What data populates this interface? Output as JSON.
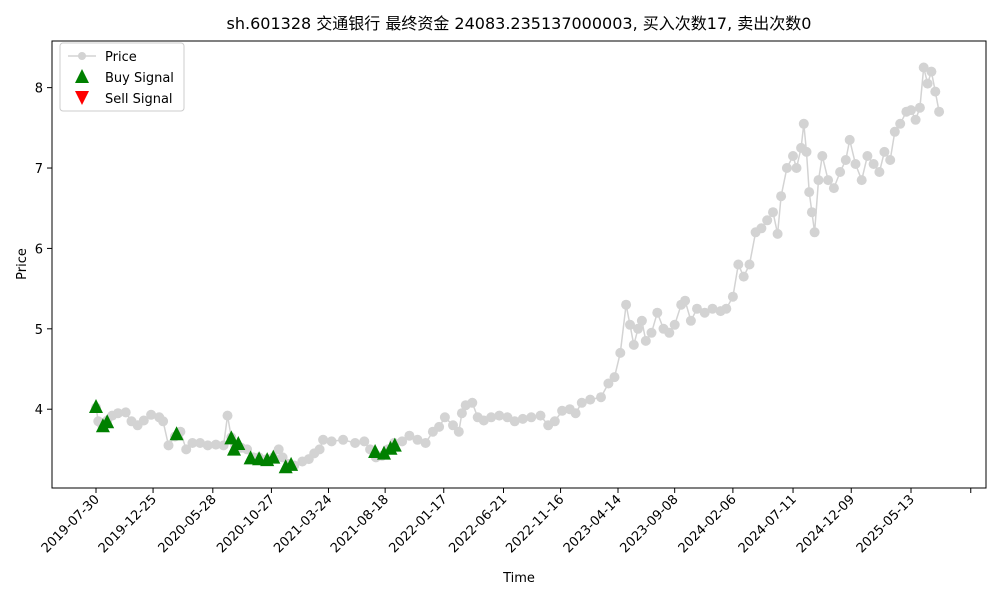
{
  "chart_data": {
    "type": "line",
    "title": "sh.601328 交通银行 最终资金 24083.235137000003, 买入次数17, 卖出次数0",
    "xlabel": "Time",
    "ylabel": "Price",
    "ylim": [
      3.02,
      8.58
    ],
    "yticks": [
      4,
      5,
      6,
      7,
      8
    ],
    "x_start": "2019-07-30",
    "x_end": "2025-07-31",
    "xticks": [
      "2019-07-30",
      "2019-12-25",
      "2020-05-28",
      "2020-10-27",
      "2021-03-24",
      "2021-08-18",
      "2022-01-17",
      "2022-06-21",
      "2022-11-16",
      "2023-04-14",
      "2023-09-08",
      "2024-02-06",
      "2024-07-11",
      "2024-12-09",
      "2025-05-13"
    ],
    "grid": false,
    "legend_location": "upper left",
    "colors": {
      "price": "#d3d3d3",
      "buy": "#008000",
      "sell": "#ff0000"
    },
    "series": [
      {
        "name": "Price",
        "marker": "circle",
        "points": [
          [
            "2019-07-30",
            4.02
          ],
          [
            "2019-08-05",
            3.85
          ],
          [
            "2019-08-15",
            3.8
          ],
          [
            "2019-08-28",
            3.86
          ],
          [
            "2019-09-10",
            3.92
          ],
          [
            "2019-09-25",
            3.95
          ],
          [
            "2019-10-15",
            3.96
          ],
          [
            "2019-10-30",
            3.85
          ],
          [
            "2019-11-15",
            3.8
          ],
          [
            "2019-12-01",
            3.86
          ],
          [
            "2019-12-20",
            3.93
          ],
          [
            "2020-01-10",
            3.9
          ],
          [
            "2020-01-20",
            3.85
          ],
          [
            "2020-02-03",
            3.55
          ],
          [
            "2020-02-20",
            3.66
          ],
          [
            "2020-03-05",
            3.72
          ],
          [
            "2020-03-20",
            3.5
          ],
          [
            "2020-04-05",
            3.58
          ],
          [
            "2020-04-25",
            3.58
          ],
          [
            "2020-05-15",
            3.55
          ],
          [
            "2020-06-05",
            3.56
          ],
          [
            "2020-06-25",
            3.55
          ],
          [
            "2020-07-05",
            3.92
          ],
          [
            "2020-07-15",
            3.65
          ],
          [
            "2020-07-25",
            3.55
          ],
          [
            "2020-08-10",
            3.52
          ],
          [
            "2020-08-25",
            3.5
          ],
          [
            "2020-09-10",
            3.4
          ],
          [
            "2020-09-25",
            3.4
          ],
          [
            "2020-10-15",
            3.38
          ],
          [
            "2020-11-01",
            3.4
          ],
          [
            "2020-11-15",
            3.5
          ],
          [
            "2020-11-25",
            3.4
          ],
          [
            "2020-12-10",
            3.32
          ],
          [
            "2020-12-25",
            3.3
          ],
          [
            "2021-01-15",
            3.35
          ],
          [
            "2021-02-01",
            3.38
          ],
          [
            "2021-02-15",
            3.45
          ],
          [
            "2021-03-01",
            3.5
          ],
          [
            "2021-03-10",
            3.62
          ],
          [
            "2021-04-01",
            3.6
          ],
          [
            "2021-05-01",
            3.62
          ],
          [
            "2021-06-01",
            3.58
          ],
          [
            "2021-06-25",
            3.6
          ],
          [
            "2021-07-10",
            3.5
          ],
          [
            "2021-07-25",
            3.4
          ],
          [
            "2021-08-10",
            3.42
          ],
          [
            "2021-08-25",
            3.5
          ],
          [
            "2021-09-10",
            3.58
          ],
          [
            "2021-10-01",
            3.6
          ],
          [
            "2021-10-20",
            3.67
          ],
          [
            "2021-11-10",
            3.62
          ],
          [
            "2021-12-01",
            3.58
          ],
          [
            "2021-12-20",
            3.72
          ],
          [
            "2022-01-05",
            3.78
          ],
          [
            "2022-01-20",
            3.9
          ],
          [
            "2022-02-10",
            3.8
          ],
          [
            "2022-02-25",
            3.72
          ],
          [
            "2022-03-05",
            3.95
          ],
          [
            "2022-03-15",
            4.05
          ],
          [
            "2022-04-01",
            4.08
          ],
          [
            "2022-04-15",
            3.9
          ],
          [
            "2022-05-01",
            3.86
          ],
          [
            "2022-05-20",
            3.9
          ],
          [
            "2022-06-10",
            3.92
          ],
          [
            "2022-07-01",
            3.9
          ],
          [
            "2022-07-20",
            3.85
          ],
          [
            "2022-08-10",
            3.88
          ],
          [
            "2022-09-01",
            3.9
          ],
          [
            "2022-09-25",
            3.92
          ],
          [
            "2022-10-15",
            3.8
          ],
          [
            "2022-11-01",
            3.85
          ],
          [
            "2022-11-20",
            3.98
          ],
          [
            "2022-12-10",
            4.0
          ],
          [
            "2022-12-25",
            3.95
          ],
          [
            "2023-01-10",
            4.08
          ],
          [
            "2023-02-01",
            4.12
          ],
          [
            "2023-03-01",
            4.15
          ],
          [
            "2023-03-20",
            4.32
          ],
          [
            "2023-04-05",
            4.4
          ],
          [
            "2023-04-20",
            4.7
          ],
          [
            "2023-05-05",
            5.3
          ],
          [
            "2023-05-15",
            5.05
          ],
          [
            "2023-05-25",
            4.8
          ],
          [
            "2023-06-05",
            5.0
          ],
          [
            "2023-06-15",
            5.1
          ],
          [
            "2023-06-25",
            4.85
          ],
          [
            "2023-07-10",
            4.95
          ],
          [
            "2023-07-25",
            5.2
          ],
          [
            "2023-08-10",
            5.0
          ],
          [
            "2023-08-25",
            4.95
          ],
          [
            "2023-09-08",
            5.05
          ],
          [
            "2023-09-25",
            5.3
          ],
          [
            "2023-10-05",
            5.35
          ],
          [
            "2023-10-20",
            5.1
          ],
          [
            "2023-11-05",
            5.25
          ],
          [
            "2023-11-25",
            5.2
          ],
          [
            "2023-12-15",
            5.25
          ],
          [
            "2024-01-05",
            5.22
          ],
          [
            "2024-01-20",
            5.25
          ],
          [
            "2024-02-06",
            5.4
          ],
          [
            "2024-02-20",
            5.8
          ],
          [
            "2024-03-05",
            5.65
          ],
          [
            "2024-03-20",
            5.8
          ],
          [
            "2024-04-05",
            6.2
          ],
          [
            "2024-04-20",
            6.25
          ],
          [
            "2024-05-05",
            6.35
          ],
          [
            "2024-05-20",
            6.45
          ],
          [
            "2024-06-01",
            6.18
          ],
          [
            "2024-06-10",
            6.65
          ],
          [
            "2024-06-25",
            7.0
          ],
          [
            "2024-07-11",
            7.15
          ],
          [
            "2024-07-20",
            7.0
          ],
          [
            "2024-08-01",
            7.25
          ],
          [
            "2024-08-08",
            7.55
          ],
          [
            "2024-08-15",
            7.2
          ],
          [
            "2024-08-22",
            6.7
          ],
          [
            "2024-08-29",
            6.45
          ],
          [
            "2024-09-05",
            6.2
          ],
          [
            "2024-09-15",
            6.85
          ],
          [
            "2024-09-25",
            7.15
          ],
          [
            "2024-10-10",
            6.85
          ],
          [
            "2024-10-25",
            6.75
          ],
          [
            "2024-11-10",
            6.95
          ],
          [
            "2024-11-25",
            7.1
          ],
          [
            "2024-12-05",
            7.35
          ],
          [
            "2024-12-20",
            7.05
          ],
          [
            "2025-01-05",
            6.85
          ],
          [
            "2025-01-20",
            7.15
          ],
          [
            "2025-02-05",
            7.05
          ],
          [
            "2025-02-20",
            6.95
          ],
          [
            "2025-03-05",
            7.2
          ],
          [
            "2025-03-20",
            7.1
          ],
          [
            "2025-04-01",
            7.45
          ],
          [
            "2025-04-15",
            7.55
          ],
          [
            "2025-05-01",
            7.7
          ],
          [
            "2025-05-13",
            7.72
          ],
          [
            "2025-05-25",
            7.6
          ],
          [
            "2025-06-05",
            7.75
          ],
          [
            "2025-06-15",
            8.25
          ],
          [
            "2025-06-25",
            8.05
          ],
          [
            "2025-07-05",
            8.2
          ],
          [
            "2025-07-15",
            7.95
          ],
          [
            "2025-07-25",
            7.7
          ]
        ]
      },
      {
        "name": "Buy Signal",
        "marker": "triangle-up",
        "points": [
          [
            "2019-07-30",
            4.04
          ],
          [
            "2019-08-17",
            3.8
          ],
          [
            "2019-08-28",
            3.85
          ],
          [
            "2020-02-24",
            3.7
          ],
          [
            "2020-07-15",
            3.65
          ],
          [
            "2020-07-22",
            3.51
          ],
          [
            "2020-08-02",
            3.58
          ],
          [
            "2020-09-03",
            3.4
          ],
          [
            "2020-09-25",
            3.39
          ],
          [
            "2020-10-16",
            3.38
          ],
          [
            "2020-11-01",
            3.41
          ],
          [
            "2020-12-03",
            3.29
          ],
          [
            "2020-12-17",
            3.32
          ],
          [
            "2021-07-23",
            3.48
          ],
          [
            "2021-08-15",
            3.46
          ],
          [
            "2021-09-01",
            3.52
          ],
          [
            "2021-09-12",
            3.56
          ]
        ]
      },
      {
        "name": "Sell Signal",
        "marker": "triangle-down",
        "points": []
      }
    ]
  }
}
